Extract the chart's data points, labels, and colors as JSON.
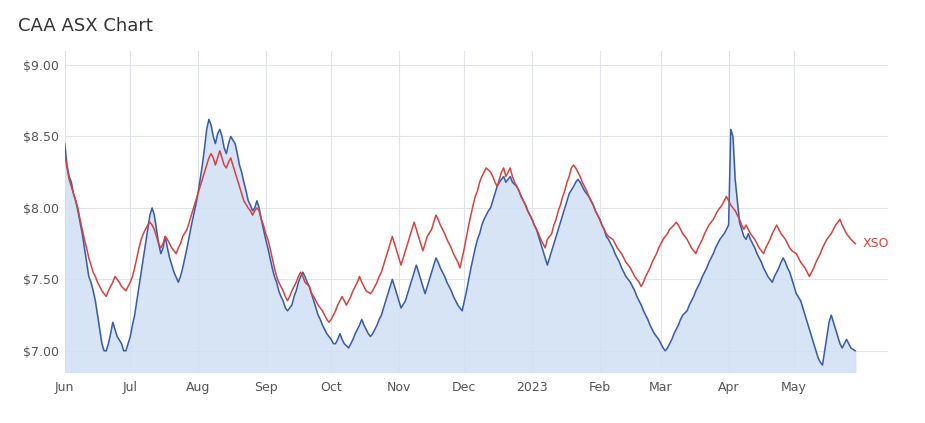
{
  "title": "CAA ASX Chart",
  "title_fontsize": 13,
  "title_color": "#333333",
  "background_color": "#ffffff",
  "plot_bg_color": "#ffffff",
  "grid_color": "#e0e4ea",
  "ylim": [
    6.85,
    9.1
  ],
  "yticks": [
    7.0,
    7.5,
    8.0,
    8.5,
    9.0
  ],
  "ytick_labels": [
    "$7.00",
    "$7.50",
    "$8.00",
    "$8.50",
    "$9.00"
  ],
  "xso_label": "XSO",
  "xso_color": "#d94040",
  "caa_color": "#3a5ca8",
  "caa_fill_color": "#d0e0f5",
  "caa_fill_alpha": 0.85,
  "line_width": 1.1,
  "caa_data": [
    8.45,
    8.3,
    8.22,
    8.18,
    8.1,
    8.05,
    7.98,
    7.9,
    7.82,
    7.72,
    7.62,
    7.52,
    7.48,
    7.42,
    7.35,
    7.25,
    7.15,
    7.05,
    7.0,
    7.0,
    7.05,
    7.12,
    7.2,
    7.15,
    7.1,
    7.05,
    7.0,
    7.0,
    7.05,
    7.1,
    7.18,
    7.25,
    7.35,
    7.45,
    7.55,
    7.65,
    7.75,
    7.85,
    7.95,
    8.0,
    7.95,
    7.85,
    7.75,
    7.68,
    7.72,
    7.8,
    7.72,
    7.65,
    7.6,
    7.55,
    7.48,
    7.52,
    7.58,
    7.65,
    7.72,
    7.8,
    7.88,
    7.95,
    8.02,
    8.1,
    8.2,
    8.3,
    8.42,
    8.55,
    8.62,
    8.58,
    8.5,
    8.45,
    8.52,
    8.55,
    8.5,
    8.42,
    8.38,
    8.45,
    8.5,
    8.45,
    8.38,
    8.3,
    8.25,
    8.18,
    8.12,
    8.05,
    8.02,
    7.98,
    8.0,
    8.05,
    8.0,
    7.92,
    7.85,
    7.78,
    7.72,
    7.65,
    7.58,
    7.52,
    7.48,
    7.42,
    7.38,
    7.35,
    7.3,
    7.28,
    7.32,
    7.38,
    7.42,
    7.48,
    7.52,
    7.55,
    7.52,
    7.48,
    7.45,
    7.4,
    7.35,
    7.3,
    7.25,
    7.22,
    7.18,
    7.15,
    7.12,
    7.1,
    7.08,
    7.05,
    7.05,
    7.08,
    7.12,
    7.08,
    7.05,
    7.02,
    7.05,
    7.08,
    7.12,
    7.15,
    7.18,
    7.22,
    7.18,
    7.15,
    7.12,
    7.1,
    7.12,
    7.15,
    7.18,
    7.22,
    7.25,
    7.3,
    7.35,
    7.4,
    7.45,
    7.5,
    7.45,
    7.4,
    7.35,
    7.3,
    7.35,
    7.4,
    7.45,
    7.5,
    7.55,
    7.6,
    7.55,
    7.5,
    7.45,
    7.4,
    7.45,
    7.5,
    7.55,
    7.6,
    7.65,
    7.62,
    7.58,
    7.55,
    7.52,
    7.48,
    7.45,
    7.42,
    7.38,
    7.35,
    7.32,
    7.28,
    7.35,
    7.42,
    7.5,
    7.58,
    7.65,
    7.72,
    7.78,
    7.82,
    7.88,
    7.92,
    7.95,
    7.98,
    8.0,
    8.05,
    8.1,
    8.15,
    8.18,
    8.2,
    8.22,
    8.18,
    8.2,
    8.22,
    8.18,
    8.15,
    8.12,
    8.08,
    8.05,
    8.02,
    7.98,
    7.95,
    7.92,
    7.88,
    7.85,
    7.8,
    7.75,
    7.7,
    7.65,
    7.6,
    7.65,
    7.7,
    7.75,
    7.8,
    7.85,
    7.9,
    7.95,
    8.0,
    8.05,
    8.1,
    8.15,
    8.18,
    8.2,
    8.18,
    8.15,
    8.12,
    8.1,
    8.08,
    8.05,
    8.02,
    7.98,
    7.95,
    7.92,
    7.88,
    7.85,
    7.8,
    7.78,
    7.75,
    7.72,
    7.68,
    7.65,
    7.62,
    7.58,
    7.55,
    7.52,
    7.48,
    7.45,
    7.42,
    7.38,
    7.35,
    7.32,
    7.28,
    7.25,
    7.22,
    7.18,
    7.15,
    7.12,
    7.1,
    7.08,
    7.05,
    7.02,
    7.0,
    7.02,
    7.05,
    7.08,
    7.12,
    7.15,
    7.18,
    7.22,
    7.25,
    7.28,
    7.32,
    7.35,
    7.38,
    7.42,
    7.45,
    7.48,
    7.52,
    7.55,
    7.58,
    7.62,
    7.65,
    7.68,
    7.72,
    7.75,
    7.78,
    7.8,
    7.82,
    7.85,
    7.88,
    8.55,
    8.5,
    8.2,
    8.05,
    7.9,
    7.8,
    7.78,
    7.82,
    7.78,
    7.75,
    7.72,
    7.68,
    7.65,
    7.62,
    7.58,
    7.55,
    7.52,
    7.5,
    7.48,
    7.52,
    7.55,
    7.58,
    7.62,
    7.65,
    7.62,
    7.58,
    7.55,
    7.5,
    7.45,
    7.4,
    7.35,
    7.3,
    7.25,
    7.2,
    7.15,
    7.1,
    7.05,
    7.0,
    6.95,
    6.92,
    6.9,
    7.0,
    7.1,
    7.2,
    7.25,
    7.2,
    7.15,
    7.1,
    7.05,
    7.02,
    7.05,
    7.08,
    7.05,
    7.02,
    7.0
  ],
  "xso_data": [
    8.38,
    8.28,
    8.2,
    8.15,
    8.1,
    8.05,
    8.0,
    7.92,
    7.85,
    7.78,
    7.72,
    7.65,
    7.6,
    7.55,
    7.52,
    7.48,
    7.45,
    7.42,
    7.4,
    7.38,
    7.42,
    7.45,
    7.48,
    7.52,
    7.5,
    7.48,
    7.45,
    7.42,
    7.45,
    7.48,
    7.52,
    7.58,
    7.65,
    7.72,
    7.78,
    7.82,
    7.85,
    7.88,
    7.9,
    7.88,
    7.85,
    7.8,
    7.75,
    7.72,
    7.75,
    7.8,
    7.78,
    7.75,
    7.72,
    7.7,
    7.68,
    7.72,
    7.75,
    7.8,
    7.85,
    7.9,
    7.95,
    8.0,
    8.05,
    8.1,
    8.15,
    8.2,
    8.25,
    8.3,
    8.35,
    8.38,
    8.35,
    8.3,
    8.35,
    8.4,
    8.35,
    8.3,
    8.28,
    8.32,
    8.35,
    8.3,
    8.25,
    8.2,
    8.15,
    8.1,
    8.05,
    8.0,
    7.98,
    7.95,
    7.98,
    8.0,
    7.98,
    7.92,
    7.88,
    7.82,
    7.78,
    7.72,
    7.65,
    7.58,
    7.52,
    7.48,
    7.45,
    7.42,
    7.38,
    7.35,
    7.38,
    7.42,
    7.45,
    7.48,
    7.52,
    7.55,
    7.52,
    7.48,
    7.45,
    7.4,
    7.38,
    7.35,
    7.32,
    7.3,
    7.28,
    7.25,
    7.22,
    7.2,
    7.22,
    7.25,
    7.28,
    7.32,
    7.35,
    7.38,
    7.35,
    7.32,
    7.35,
    7.38,
    7.42,
    7.45,
    7.48,
    7.52,
    7.48,
    7.45,
    7.42,
    7.4,
    7.42,
    7.45,
    7.48,
    7.52,
    7.55,
    7.6,
    7.65,
    7.7,
    7.75,
    7.8,
    7.75,
    7.7,
    7.65,
    7.6,
    7.65,
    7.7,
    7.75,
    7.8,
    7.85,
    7.9,
    7.85,
    7.8,
    7.75,
    7.7,
    7.75,
    7.8,
    7.85,
    7.9,
    7.95,
    7.92,
    7.88,
    7.85,
    7.82,
    7.78,
    7.75,
    7.72,
    7.68,
    7.65,
    7.62,
    7.58,
    7.65,
    7.72,
    7.8,
    7.88,
    7.95,
    8.02,
    8.08,
    8.12,
    8.18,
    8.22,
    8.25,
    8.28,
    8.25,
    8.22,
    8.18,
    8.15,
    8.2,
    8.25,
    8.28,
    8.22,
    8.25,
    8.28,
    8.22,
    8.18,
    8.15,
    8.12,
    8.08,
    8.05,
    8.02,
    7.98,
    7.95,
    7.92,
    7.88,
    7.85,
    7.82,
    7.78,
    7.75,
    7.72,
    7.78,
    7.82,
    7.88,
    7.92,
    7.98,
    8.02,
    8.08,
    8.12,
    8.18,
    8.22,
    8.28,
    8.3,
    8.28,
    8.25,
    8.22,
    8.18,
    8.15,
    8.12,
    8.08,
    8.05,
    8.02,
    7.98,
    7.95,
    7.92,
    7.88,
    7.85,
    7.82,
    7.8,
    7.78,
    7.75,
    7.72,
    7.7,
    7.68,
    7.65,
    7.62,
    7.6,
    7.58,
    7.55,
    7.52,
    7.5,
    7.48,
    7.45,
    7.48,
    7.52,
    7.55,
    7.58,
    7.62,
    7.65,
    7.68,
    7.72,
    7.75,
    7.78,
    7.8,
    7.82,
    7.85,
    7.88,
    7.9,
    7.88,
    7.85,
    7.82,
    7.8,
    7.78,
    7.75,
    7.72,
    7.7,
    7.68,
    7.72,
    7.75,
    7.78,
    7.82,
    7.85,
    7.88,
    7.9,
    7.92,
    7.95,
    7.98,
    8.0,
    8.02,
    8.05,
    8.08,
    8.05,
    8.02,
    7.98,
    7.95,
    7.92,
    7.88,
    7.85,
    7.88,
    7.85,
    7.82,
    7.8,
    7.78,
    7.75,
    7.72,
    7.7,
    7.68,
    7.72,
    7.75,
    7.78,
    7.82,
    7.85,
    7.88,
    7.85,
    7.82,
    7.8,
    7.78,
    7.75,
    7.72,
    7.7,
    7.68,
    7.65,
    7.62,
    7.6,
    7.58,
    7.55,
    7.52,
    7.55,
    7.58,
    7.62,
    7.65,
    7.68,
    7.72,
    7.75,
    7.78,
    7.8,
    7.82,
    7.85,
    7.88,
    7.9,
    7.92,
    7.88,
    7.85,
    7.82,
    7.8,
    7.78,
    7.75
  ]
}
